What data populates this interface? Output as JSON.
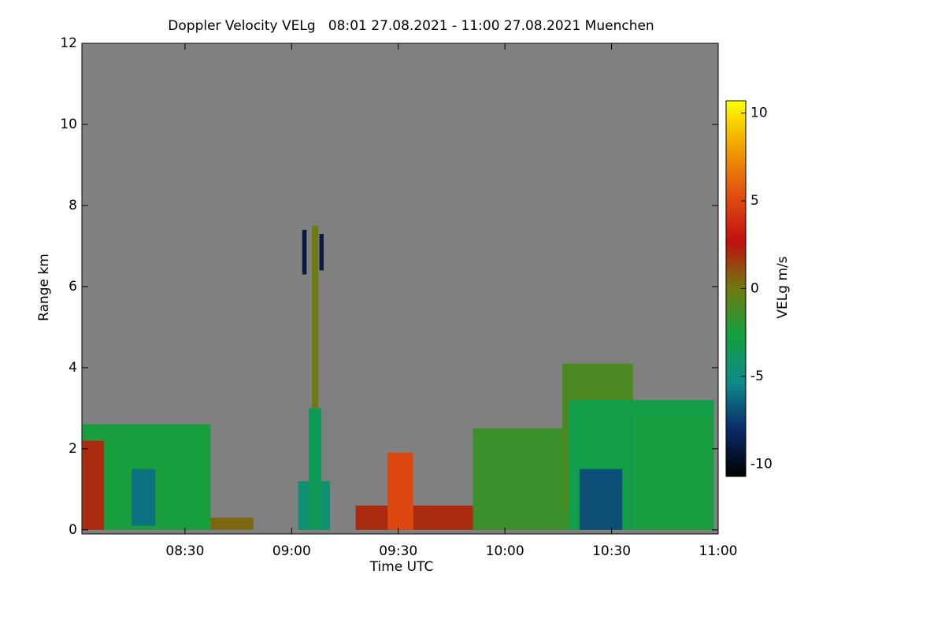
{
  "chart_data": {
    "type": "heatmap",
    "title": "Doppler Velocity VELg   08:01 27.08.2021 - 11:00 27.08.2021 Muenchen",
    "x_label": "Time UTC",
    "y_label": "Range km",
    "colorbar_label": "VELg m/s",
    "xlim": [
      8.0167,
      11
    ],
    "ylim": [
      -0.1,
      12
    ],
    "xticks": [
      {
        "value": 8.5,
        "label": "08:30"
      },
      {
        "value": 9,
        "label": "09:00"
      },
      {
        "value": 9.5,
        "label": "09:30"
      },
      {
        "value": 10,
        "label": "10:00"
      },
      {
        "value": 10.5,
        "label": "10:30"
      },
      {
        "value": 11,
        "label": "11:00"
      }
    ],
    "yticks": [
      0,
      2,
      4,
      6,
      8,
      10,
      12
    ],
    "zlim": [
      -10.7,
      10.7
    ],
    "zticks": [
      -10,
      -5,
      0,
      5,
      10
    ],
    "background": "#808080",
    "colormap": [
      "#000000",
      "#0a2a6a",
      "#0e8a8a",
      "#12a040",
      "#6e7a10",
      "#c01010",
      "#e05010",
      "#f0a000",
      "#ffff00"
    ],
    "cells": [
      {
        "x": [
          8.02,
          8.62
        ],
        "y": [
          0,
          2.6
        ],
        "value": -2.5
      },
      {
        "x": [
          8.02,
          8.12
        ],
        "y": [
          0,
          2.2
        ],
        "value": 2
      },
      {
        "x": [
          8.25,
          8.36
        ],
        "y": [
          0.1,
          1.5
        ],
        "value": -6
      },
      {
        "x": [
          8.62,
          8.82
        ],
        "y": [
          0,
          0.3
        ],
        "value": 0.5
      },
      {
        "x": [
          9.03,
          9.18
        ],
        "y": [
          0,
          1.2
        ],
        "value": -4.5
      },
      {
        "x": [
          9.08,
          9.14
        ],
        "y": [
          0,
          3
        ],
        "value": -3.5
      },
      {
        "x": [
          9.095,
          9.125
        ],
        "y": [
          3,
          7.5
        ],
        "value": 0
      },
      {
        "x": [
          9.05,
          9.07
        ],
        "y": [
          6.3,
          7.4
        ],
        "value": -9
      },
      {
        "x": [
          9.13,
          9.15
        ],
        "y": [
          6.4,
          7.3
        ],
        "value": -9
      },
      {
        "x": [
          9.3,
          9.95
        ],
        "y": [
          0,
          0.6
        ],
        "value": 2
      },
      {
        "x": [
          9.45,
          9.57
        ],
        "y": [
          0,
          1.9
        ],
        "value": 5
      },
      {
        "x": [
          9.85,
          10.3
        ],
        "y": [
          0,
          2.5
        ],
        "value": -1.5
      },
      {
        "x": [
          10.27,
          10.6
        ],
        "y": [
          0.5,
          4.1
        ],
        "value": -1
      },
      {
        "x": [
          10.3,
          10.98
        ],
        "y": [
          0,
          3.2
        ],
        "value": -3
      },
      {
        "x": [
          10.35,
          10.55
        ],
        "y": [
          0,
          1.5
        ],
        "value": -7
      },
      {
        "x": [
          10.6,
          10.98
        ],
        "y": [
          0,
          2.8
        ],
        "value": -2.5
      }
    ]
  }
}
